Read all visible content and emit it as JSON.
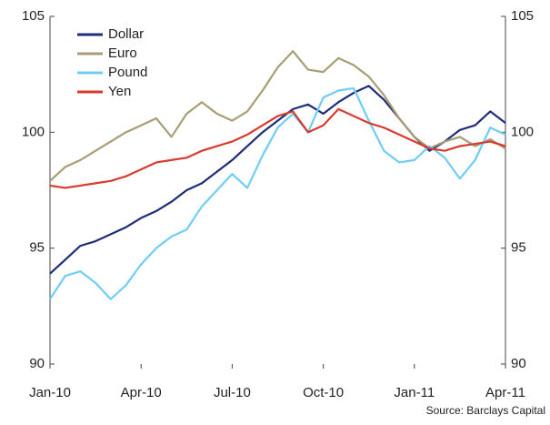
{
  "chart_data": {
    "type": "line",
    "source": "Source: Barclays Capital",
    "x": [
      0,
      0.5,
      1,
      1.5,
      2,
      2.5,
      3,
      3.5,
      4,
      4.5,
      5,
      5.5,
      6,
      6.5,
      7,
      7.5,
      8,
      8.5,
      9,
      9.5,
      10,
      10.5,
      11,
      11.5,
      12,
      12.5,
      13,
      13.5,
      14,
      14.5,
      15
    ],
    "xlim": [
      0,
      15
    ],
    "xticks": [
      {
        "value": 0,
        "label": "Jan-10"
      },
      {
        "value": 3,
        "label": "Apr-10"
      },
      {
        "value": 6,
        "label": "Jul-10"
      },
      {
        "value": 9,
        "label": "Oct-10"
      },
      {
        "value": 12,
        "label": "Jan-11"
      },
      {
        "value": 15,
        "label": "Apr-11"
      }
    ],
    "ylim": [
      90,
      105
    ],
    "yticks": [
      90,
      95,
      100,
      105
    ],
    "y2lim": [
      90,
      105
    ],
    "y2ticks": [
      90,
      95,
      100,
      105
    ],
    "legend": "upper left",
    "series": [
      {
        "name": "Dollar",
        "color": "#1f2d78",
        "values": [
          93.9,
          94.5,
          95.1,
          95.3,
          95.6,
          95.9,
          96.3,
          96.6,
          97.0,
          97.5,
          97.8,
          98.3,
          98.8,
          99.4,
          100.0,
          100.5,
          101.0,
          101.2,
          100.8,
          101.3,
          101.7,
          102.0,
          101.4,
          100.6,
          99.8,
          99.2,
          99.6,
          100.1,
          100.3,
          100.9,
          100.4
        ]
      },
      {
        "name": "Euro",
        "color": "#a89d74",
        "values": [
          97.9,
          98.5,
          98.8,
          99.2,
          99.6,
          100.0,
          100.3,
          100.6,
          99.8,
          100.8,
          101.3,
          100.8,
          100.5,
          100.9,
          101.8,
          102.8,
          103.5,
          102.7,
          102.6,
          103.2,
          102.9,
          102.4,
          101.6,
          100.6,
          99.8,
          99.3,
          99.6,
          99.8,
          99.4,
          99.7,
          99.3
        ]
      },
      {
        "name": "Pound",
        "color": "#6fcdf5",
        "values": [
          92.8,
          93.8,
          94.0,
          93.5,
          92.8,
          93.4,
          94.3,
          95.0,
          95.5,
          95.8,
          96.8,
          97.5,
          98.2,
          97.6,
          99.0,
          100.2,
          100.8,
          100.0,
          101.5,
          101.8,
          101.9,
          100.5,
          99.2,
          98.7,
          98.8,
          99.4,
          98.9,
          98.0,
          98.8,
          100.2,
          99.9
        ]
      },
      {
        "name": "Yen",
        "color": "#d93a2f",
        "values": [
          97.7,
          97.6,
          97.7,
          97.8,
          97.9,
          98.1,
          98.4,
          98.7,
          98.8,
          98.9,
          99.2,
          99.4,
          99.6,
          99.9,
          100.3,
          100.7,
          100.9,
          100.0,
          100.3,
          101.0,
          100.7,
          100.4,
          100.2,
          99.9,
          99.6,
          99.3,
          99.2,
          99.4,
          99.5,
          99.6,
          99.4
        ]
      }
    ]
  }
}
